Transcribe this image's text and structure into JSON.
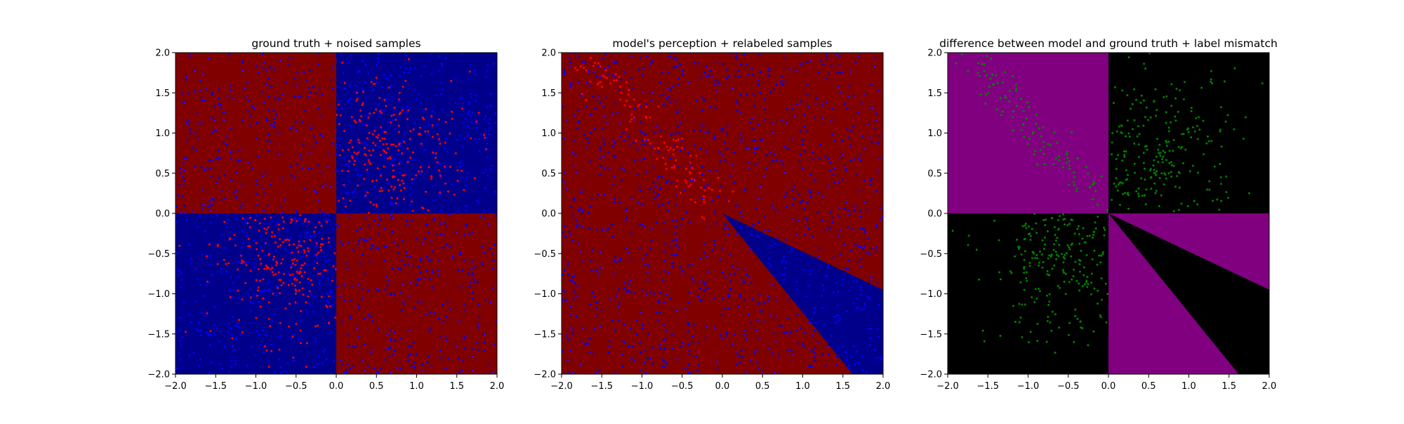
{
  "colors": {
    "red_region": "#800000",
    "blue_region": "#00008b",
    "purple_region": "#800080",
    "black_region": "#000000",
    "red_point": "#ff0000",
    "blue_point": "#0000ff",
    "green_point": "#008000"
  },
  "chart_data": [
    {
      "type": "scatter",
      "title": "ground truth + noised samples",
      "xlim": [
        -2.0,
        2.0
      ],
      "ylim": [
        -2.0,
        2.0
      ],
      "xticks": [
        "−2.0",
        "−1.5",
        "−1.0",
        "−0.5",
        "0.0",
        "0.5",
        "1.0",
        "1.5",
        "2.0"
      ],
      "yticks": [
        "−2.0",
        "−1.5",
        "−1.0",
        "−0.5",
        "0.0",
        "0.5",
        "1.0",
        "1.5",
        "2.0"
      ],
      "grid": false,
      "background_regions": [
        {
          "name": "upper-left quadrant",
          "color": "red_region",
          "polygon": [
            [
              -2,
              0
            ],
            [
              0,
              0
            ],
            [
              0,
              2
            ],
            [
              -2,
              2
            ]
          ]
        },
        {
          "name": "upper-right quadrant",
          "color": "blue_region",
          "polygon": [
            [
              0,
              0
            ],
            [
              2,
              0
            ],
            [
              2,
              2
            ],
            [
              0,
              2
            ]
          ]
        },
        {
          "name": "lower-left quadrant",
          "color": "blue_region",
          "polygon": [
            [
              -2,
              -2
            ],
            [
              0,
              -2
            ],
            [
              0,
              0
            ],
            [
              -2,
              0
            ]
          ]
        },
        {
          "name": "lower-right quadrant",
          "color": "red_region",
          "polygon": [
            [
              0,
              -2
            ],
            [
              2,
              -2
            ],
            [
              2,
              0
            ],
            [
              0,
              0
            ]
          ]
        }
      ],
      "point_groups": [
        {
          "color": "blue_point",
          "mode": "uniform",
          "x_range": [
            -2,
            2
          ],
          "y_range": [
            -2,
            2
          ],
          "count": 1050
        },
        {
          "color": "red_point",
          "mode": "gaussian",
          "center": [
            0.55,
            0.75
          ],
          "spread": [
            0.55,
            0.5
          ],
          "clip": [
            0,
            2,
            0,
            2
          ],
          "count": 230
        },
        {
          "color": "red_point",
          "mode": "gaussian",
          "center": [
            -0.6,
            -0.6
          ],
          "spread": [
            0.45,
            0.5
          ],
          "clip": [
            -2,
            0,
            -2,
            0
          ],
          "count": 230
        }
      ]
    },
    {
      "type": "scatter",
      "title": "model's perception + relabeled samples",
      "xlim": [
        -2.0,
        2.0
      ],
      "ylim": [
        -2.0,
        2.0
      ],
      "xticks": [
        "−2.0",
        "−1.5",
        "−1.0",
        "−0.5",
        "0.0",
        "0.5",
        "1.0",
        "1.5",
        "2.0"
      ],
      "yticks": [
        "−2.0",
        "−1.5",
        "−1.0",
        "−0.5",
        "0.0",
        "0.5",
        "1.0",
        "1.5",
        "2.0"
      ],
      "grid": false,
      "background_regions": [
        {
          "name": "red background",
          "color": "red_region",
          "polygon": [
            [
              -2,
              -2
            ],
            [
              2,
              -2
            ],
            [
              2,
              2
            ],
            [
              -2,
              2
            ]
          ]
        },
        {
          "name": "blue wedge",
          "color": "blue_region",
          "polygon": [
            [
              0,
              0
            ],
            [
              2,
              -0.95
            ],
            [
              2,
              -2
            ],
            [
              1.62,
              -2
            ]
          ]
        }
      ],
      "point_groups": [
        {
          "color": "blue_point",
          "mode": "uniform",
          "x_range": [
            -2,
            2
          ],
          "y_range": [
            -2,
            2
          ],
          "count": 1100
        },
        {
          "color": "red_point",
          "mode": "band",
          "from": [
            -0.05,
            0.12
          ],
          "to": [
            -1.75,
            1.95
          ],
          "width": 0.12,
          "count": 110
        }
      ]
    },
    {
      "type": "scatter",
      "title": "difference between model and ground truth + label mismatch",
      "xlim": [
        -2.0,
        2.0
      ],
      "ylim": [
        -2.0,
        2.0
      ],
      "xticks": [
        "−2.0",
        "−1.5",
        "−1.0",
        "−0.5",
        "0.0",
        "0.5",
        "1.0",
        "1.5",
        "2.0"
      ],
      "yticks": [
        "−2.0",
        "−1.5",
        "−1.0",
        "−0.5",
        "0.0",
        "0.5",
        "1.0",
        "1.5",
        "2.0"
      ],
      "grid": false,
      "background_regions": [
        {
          "name": "black background",
          "color": "black_region",
          "polygon": [
            [
              -2,
              -2
            ],
            [
              2,
              -2
            ],
            [
              2,
              2
            ],
            [
              -2,
              2
            ]
          ]
        },
        {
          "name": "upper-left mismatch",
          "color": "purple_region",
          "polygon": [
            [
              -2,
              0
            ],
            [
              0,
              0
            ],
            [
              0,
              2
            ],
            [
              -2,
              2
            ]
          ]
        },
        {
          "name": "lower-right mismatch upper part",
          "color": "purple_region",
          "polygon": [
            [
              0,
              0
            ],
            [
              2,
              0
            ],
            [
              2,
              -0.95
            ]
          ]
        },
        {
          "name": "lower-right mismatch lower part",
          "color": "purple_region",
          "polygon": [
            [
              0,
              0
            ],
            [
              1.62,
              -2
            ],
            [
              0,
              -2
            ]
          ]
        }
      ],
      "point_groups": [
        {
          "color": "green_point",
          "mode": "gaussian",
          "center": [
            0.55,
            0.75
          ],
          "spread": [
            0.55,
            0.5
          ],
          "clip": [
            0,
            2,
            0,
            2
          ],
          "count": 230
        },
        {
          "color": "green_point",
          "mode": "gaussian",
          "center": [
            -0.6,
            -0.6
          ],
          "spread": [
            0.45,
            0.5
          ],
          "clip": [
            -2,
            0,
            -2,
            0
          ],
          "count": 230
        },
        {
          "color": "green_point",
          "mode": "band",
          "from": [
            -0.05,
            0.12
          ],
          "to": [
            -1.75,
            1.95
          ],
          "width": 0.12,
          "count": 110
        }
      ]
    }
  ]
}
